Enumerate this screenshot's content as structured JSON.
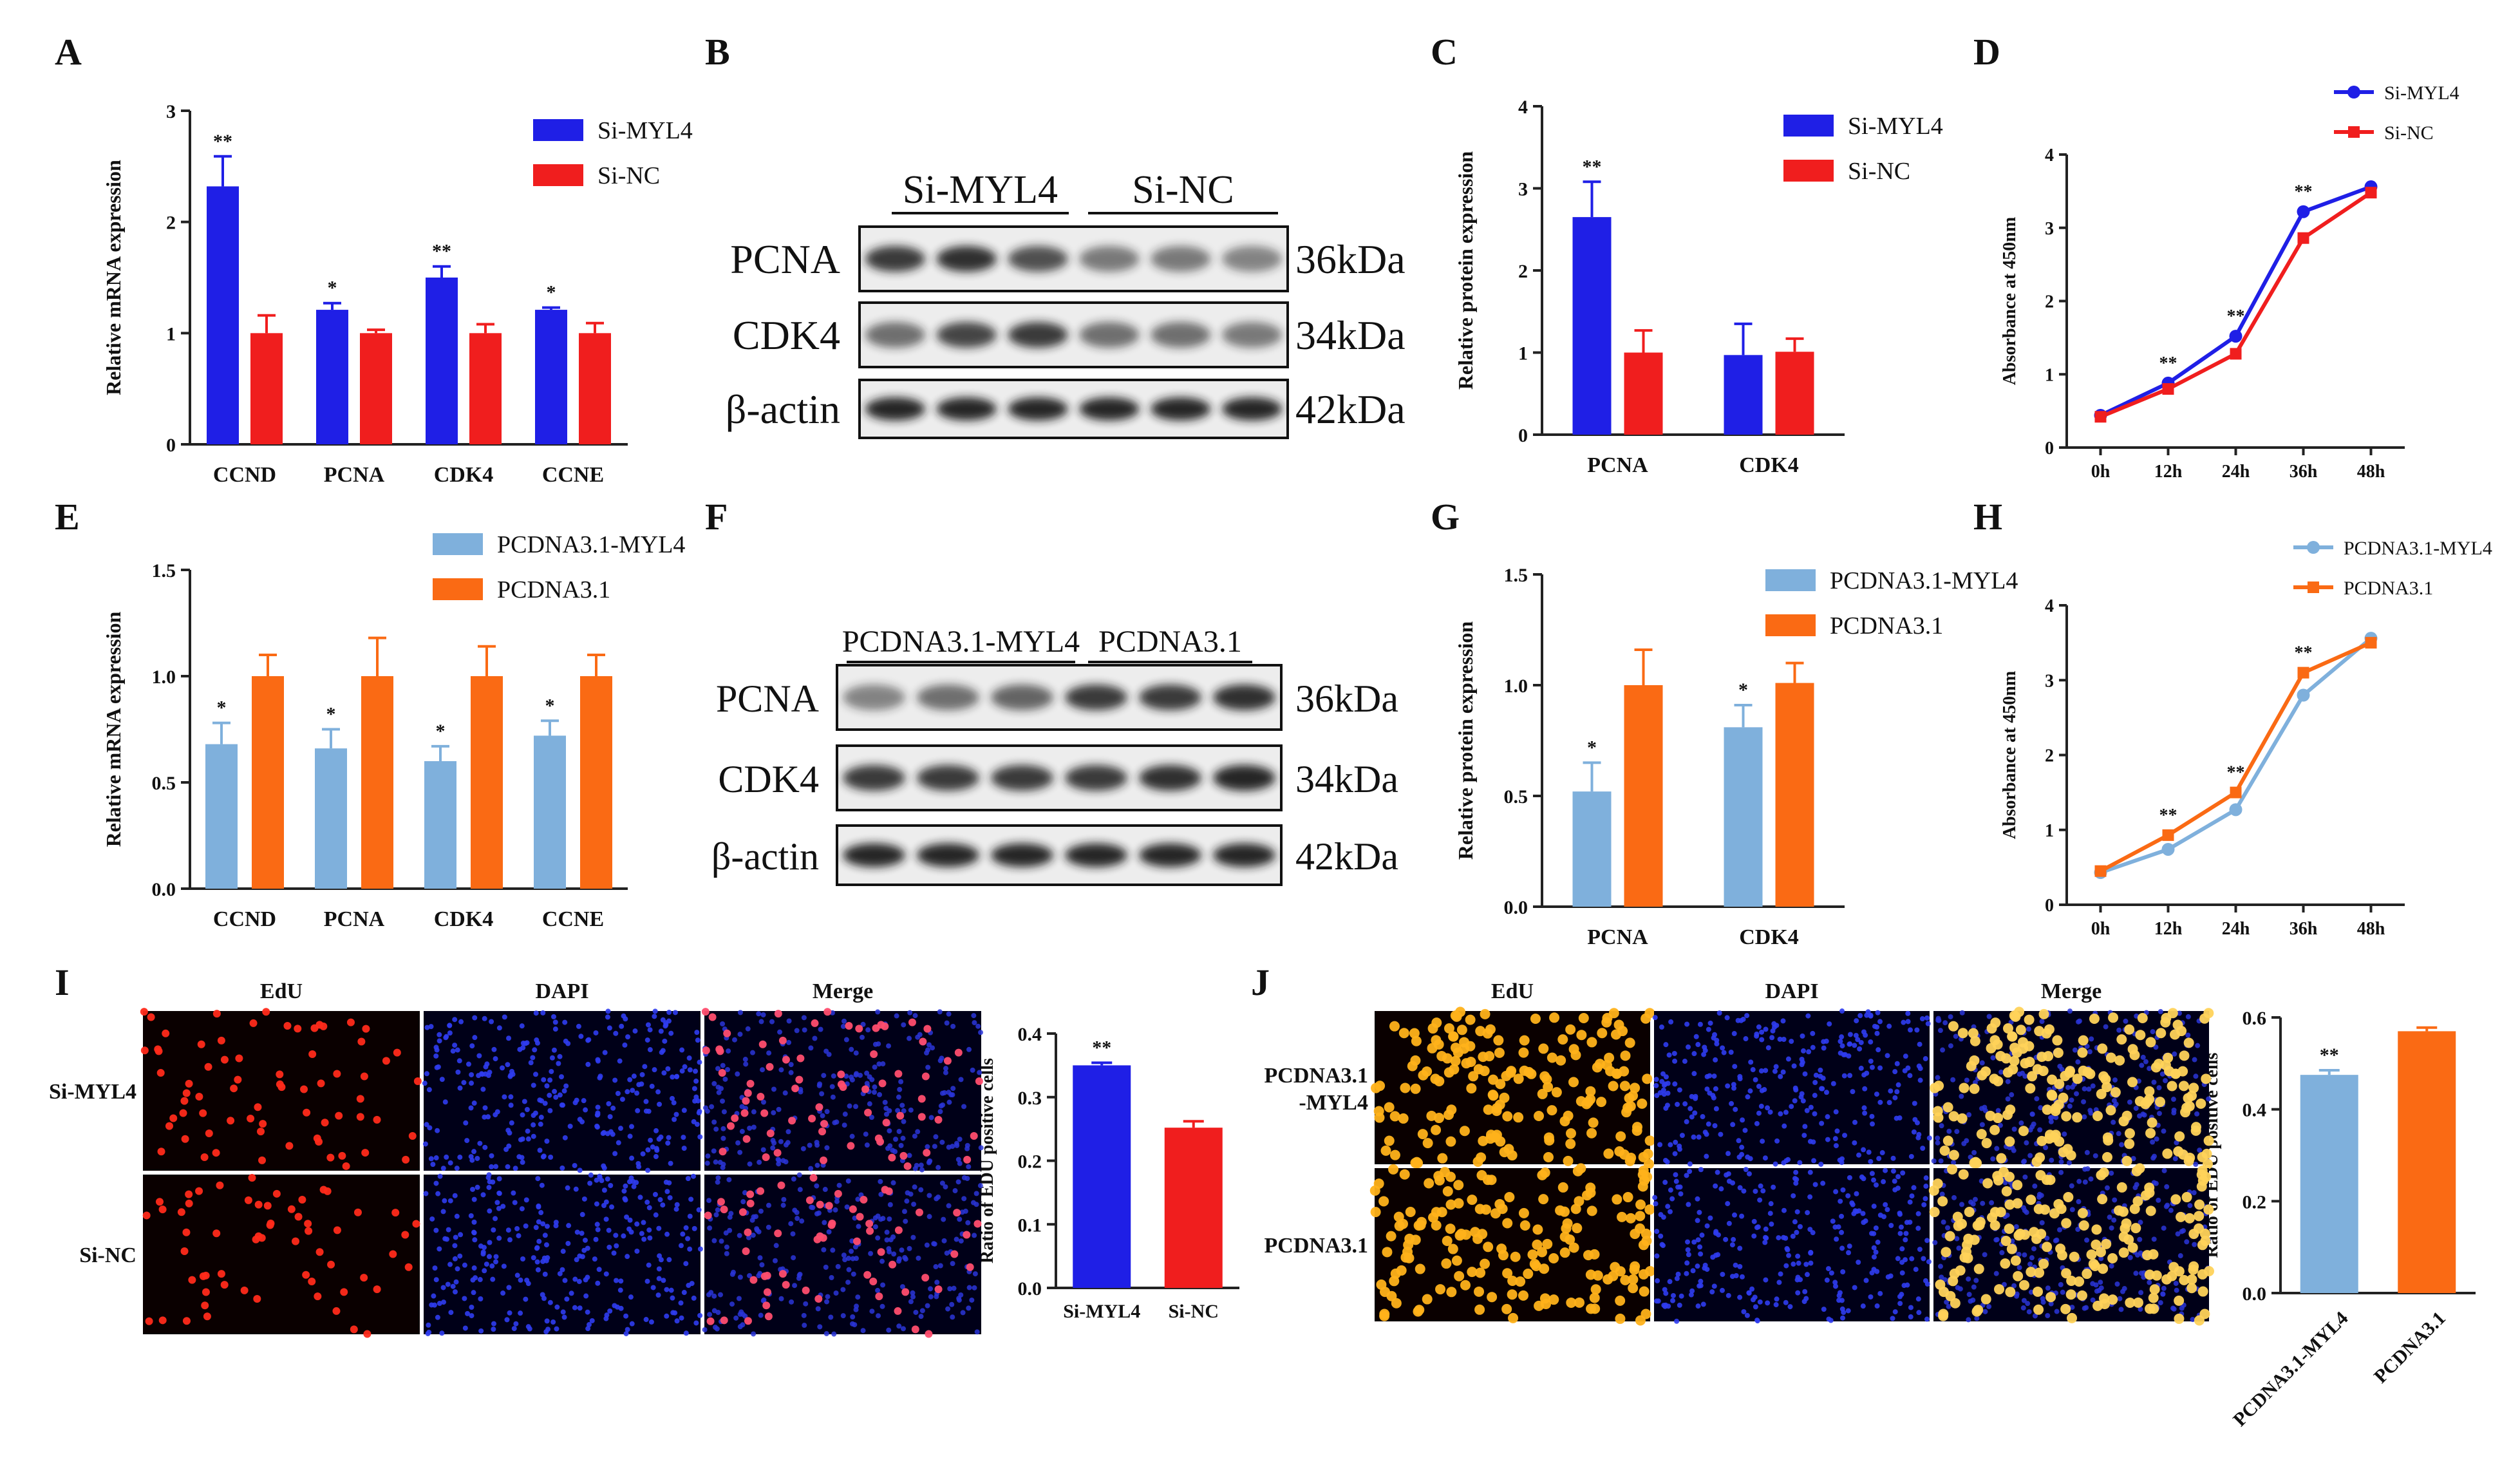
{
  "colors": {
    "blue": "#1f1fe6",
    "red": "#f01e1e",
    "lightblue": "#7fb0dc",
    "orange": "#fa6a14"
  },
  "panels": [
    {
      "id": "A",
      "letter": "A",
      "type": "bar",
      "ylabel": "Relative mRNA expression",
      "ylim": [
        0,
        3
      ],
      "yticks": [
        "0",
        "1",
        "2",
        "3"
      ],
      "categories": [
        "CCND",
        "PCNA",
        "CDK4",
        "CCNE"
      ],
      "series": [
        {
          "name": "Si-MYL4",
          "color": "blue",
          "values": [
            2.32,
            1.21,
            1.5,
            1.21
          ],
          "errors": [
            0.27,
            0.06,
            0.1,
            0.02
          ],
          "sig": [
            "**",
            "*",
            "**",
            "*"
          ]
        },
        {
          "name": "Si-NC",
          "color": "red",
          "values": [
            1.0,
            1.0,
            1.0,
            1.0
          ],
          "errors": [
            0.16,
            0.03,
            0.08,
            0.09
          ],
          "sig": [
            "",
            "",
            "",
            ""
          ]
        }
      ]
    },
    {
      "id": "C",
      "letter": "C",
      "type": "bar",
      "ylabel": "Relative  protein expression",
      "ylim": [
        0,
        4
      ],
      "yticks": [
        "0",
        "1",
        "2",
        "3",
        "4"
      ],
      "categories": [
        "PCNA",
        "CDK4"
      ],
      "series": [
        {
          "name": "Si-MYL4",
          "color": "blue",
          "values": [
            2.65,
            0.97
          ],
          "errors": [
            0.43,
            0.38
          ],
          "sig": [
            "**",
            ""
          ]
        },
        {
          "name": "Si-NC",
          "color": "red",
          "values": [
            1.0,
            1.01
          ],
          "errors": [
            0.27,
            0.16
          ],
          "sig": [
            "",
            ""
          ]
        }
      ]
    },
    {
      "id": "E",
      "letter": "E",
      "type": "bar",
      "ylabel": "Relative mRNA expression",
      "ylim": [
        0,
        1.5
      ],
      "yticks": [
        "0.0",
        "0.5",
        "1.0",
        "1.5"
      ],
      "categories": [
        "CCND",
        "PCNA",
        "CDK4",
        "CCNE"
      ],
      "series": [
        {
          "name": "PCDNA3.1-MYL4",
          "color": "lightblue",
          "values": [
            0.68,
            0.66,
            0.6,
            0.72
          ],
          "errors": [
            0.1,
            0.09,
            0.07,
            0.07
          ],
          "sig": [
            "*",
            "*",
            "*",
            "*"
          ]
        },
        {
          "name": "PCDNA3.1",
          "color": "orange",
          "values": [
            1.0,
            1.0,
            1.0,
            1.0
          ],
          "errors": [
            0.1,
            0.18,
            0.14,
            0.1
          ],
          "sig": [
            "",
            "",
            "",
            ""
          ]
        }
      ]
    },
    {
      "id": "G",
      "letter": "G",
      "type": "bar",
      "ylabel": "Relative  protein expression",
      "ylim": [
        0,
        1.5
      ],
      "yticks": [
        "0.0",
        "0.5",
        "1.0",
        "1.5"
      ],
      "categories": [
        "PCNA",
        "CDK4"
      ],
      "series": [
        {
          "name": "PCDNA3.1-MYL4",
          "color": "lightblue",
          "values": [
            0.52,
            0.81
          ],
          "errors": [
            0.13,
            0.1
          ],
          "sig": [
            "*",
            "*"
          ]
        },
        {
          "name": "PCDNA3.1",
          "color": "orange",
          "values": [
            1.0,
            1.01
          ],
          "errors": [
            0.16,
            0.09
          ],
          "sig": [
            "",
            ""
          ]
        }
      ]
    },
    {
      "id": "D",
      "letter": "D",
      "type": "line",
      "ylabel": "Absorbance at 450nm",
      "ylim": [
        0,
        4
      ],
      "yticks": [
        "0",
        "1",
        "2",
        "3",
        "4"
      ],
      "categories": [
        "0h",
        "12h",
        "24h",
        "36h",
        "48h"
      ],
      "sig": [
        "",
        "**",
        "**",
        "**",
        ""
      ],
      "series": [
        {
          "name": "Si-MYL4",
          "color": "blue",
          "marker": "circle",
          "values": [
            0.44,
            0.88,
            1.52,
            3.22,
            3.56
          ]
        },
        {
          "name": "Si-NC",
          "color": "red",
          "marker": "square",
          "values": [
            0.42,
            0.8,
            1.28,
            2.86,
            3.48
          ]
        }
      ]
    },
    {
      "id": "H",
      "letter": "H",
      "type": "line",
      "ylabel": "Absorbance at 450nm",
      "ylim": [
        0,
        4
      ],
      "yticks": [
        "0",
        "1",
        "2",
        "3",
        "4"
      ],
      "categories": [
        "0h",
        "12h",
        "24h",
        "36h",
        "48h"
      ],
      "sig": [
        "",
        "**",
        "**",
        "**",
        ""
      ],
      "series": [
        {
          "name": "PCDNA3.1-MYL4",
          "color": "lightblue",
          "marker": "circle",
          "values": [
            0.43,
            0.74,
            1.27,
            2.8,
            3.56
          ]
        },
        {
          "name": "PCDNA3.1",
          "color": "orange",
          "marker": "square",
          "values": [
            0.45,
            0.93,
            1.5,
            3.1,
            3.5
          ]
        }
      ]
    },
    {
      "id": "I",
      "letter": "",
      "type": "bar",
      "ylabel": "Ratio of EDU positive cells",
      "ylim": [
        0,
        0.4
      ],
      "yticks": [
        "0.0",
        "0.1",
        "0.2",
        "0.3",
        "0.4"
      ],
      "categories": [
        "Si-MYL4",
        "Si-NC"
      ],
      "series": [
        {
          "name": "ratio",
          "colors": [
            "blue",
            "red"
          ],
          "values": [
            0.35,
            0.252
          ],
          "errors": [
            0.004,
            0.01
          ],
          "sig": [
            "**",
            ""
          ]
        }
      ]
    },
    {
      "id": "J",
      "letter": "",
      "type": "bar",
      "ylabel": "Ratio of EDU positive cells",
      "ylim": [
        0,
        0.6
      ],
      "yticks": [
        "0.0",
        "0.2",
        "0.4",
        "0.6"
      ],
      "categories": [
        "PCDNA3.1-MYL4",
        "PCDNA3.1"
      ],
      "series": [
        {
          "name": "ratio",
          "colors": [
            "lightblue",
            "orange"
          ],
          "values": [
            0.475,
            0.57
          ],
          "errors": [
            0.01,
            0.008
          ],
          "sig": [
            "**",
            ""
          ]
        }
      ]
    }
  ],
  "chart_data": [
    {
      "panel": "A",
      "type": "bar",
      "ylabel": "Relative mRNA expression",
      "ylim": [
        0,
        3
      ],
      "categories": [
        "CCND",
        "PCNA",
        "CDK4",
        "CCNE"
      ],
      "series": [
        {
          "name": "Si-MYL4",
          "values": [
            2.32,
            1.21,
            1.5,
            1.21
          ]
        },
        {
          "name": "Si-NC",
          "values": [
            1.0,
            1.0,
            1.0,
            1.0
          ]
        }
      ]
    },
    {
      "panel": "C",
      "type": "bar",
      "ylabel": "Relative  protein expression",
      "ylim": [
        0,
        4
      ],
      "categories": [
        "PCNA",
        "CDK4"
      ],
      "series": [
        {
          "name": "Si-MYL4",
          "values": [
            2.65,
            0.97
          ]
        },
        {
          "name": "Si-NC",
          "values": [
            1.0,
            1.01
          ]
        }
      ]
    },
    {
      "panel": "D",
      "type": "line",
      "ylabel": "Absorbance at 450nm",
      "ylim": [
        0,
        4
      ],
      "x": [
        "0h",
        "12h",
        "24h",
        "36h",
        "48h"
      ],
      "series": [
        {
          "name": "Si-MYL4",
          "values": [
            0.44,
            0.88,
            1.52,
            3.22,
            3.56
          ]
        },
        {
          "name": "Si-NC",
          "values": [
            0.42,
            0.8,
            1.28,
            2.86,
            3.48
          ]
        }
      ]
    },
    {
      "panel": "E",
      "type": "bar",
      "ylabel": "Relative mRNA expression",
      "ylim": [
        0,
        1.5
      ],
      "categories": [
        "CCND",
        "PCNA",
        "CDK4",
        "CCNE"
      ],
      "series": [
        {
          "name": "PCDNA3.1-MYL4",
          "values": [
            0.68,
            0.66,
            0.6,
            0.72
          ]
        },
        {
          "name": "PCDNA3.1",
          "values": [
            1.0,
            1.0,
            1.0,
            1.0
          ]
        }
      ]
    },
    {
      "panel": "G",
      "type": "bar",
      "ylabel": "Relative  protein expression",
      "ylim": [
        0,
        1.5
      ],
      "categories": [
        "PCNA",
        "CDK4"
      ],
      "series": [
        {
          "name": "PCDNA3.1-MYL4",
          "values": [
            0.52,
            0.81
          ]
        },
        {
          "name": "PCDNA3.1",
          "values": [
            1.0,
            1.01
          ]
        }
      ]
    },
    {
      "panel": "H",
      "type": "line",
      "ylabel": "Absorbance at 450nm",
      "ylim": [
        0,
        4
      ],
      "x": [
        "0h",
        "12h",
        "24h",
        "36h",
        "48h"
      ],
      "series": [
        {
          "name": "PCDNA3.1-MYL4",
          "values": [
            0.43,
            0.74,
            1.27,
            2.8,
            3.56
          ]
        },
        {
          "name": "PCDNA3.1",
          "values": [
            0.45,
            0.93,
            1.5,
            3.1,
            3.5
          ]
        }
      ]
    },
    {
      "panel": "I",
      "type": "bar",
      "ylabel": "Ratio of EDU positive cells",
      "ylim": [
        0,
        0.4
      ],
      "categories": [
        "Si-MYL4",
        "Si-NC"
      ],
      "values": [
        0.35,
        0.252
      ]
    },
    {
      "panel": "J",
      "type": "bar",
      "ylabel": "Ratio of EDU positive cells",
      "ylim": [
        0,
        0.6
      ],
      "categories": [
        "PCDNA3.1-MYL4",
        "PCDNA3.1"
      ],
      "values": [
        0.475,
        0.57
      ]
    }
  ],
  "blots": [
    {
      "id": "B",
      "letter": "B",
      "groups": [
        "Si-MYL4",
        "Si-NC"
      ],
      "rows": [
        "PCNA",
        "CDK4",
        "β-actin"
      ],
      "sizes": [
        "36kDa",
        "34kDa",
        "42kDa"
      ]
    },
    {
      "id": "F",
      "letter": "F",
      "groups": [
        "PCDNA3.1-MYL4",
        "PCDNA3.1"
      ],
      "rows": [
        "PCNA",
        "CDK4",
        "β-actin"
      ],
      "sizes": [
        "36kDa",
        "34kDa",
        "42kDa"
      ]
    }
  ],
  "micro": [
    {
      "id": "I",
      "letter": "I",
      "columns": [
        "EdU",
        "DAPI",
        "Merge"
      ],
      "rows": [
        "Si-MYL4",
        "Si-NC"
      ]
    },
    {
      "id": "J",
      "letter": "J",
      "columns": [
        "EdU",
        "DAPI",
        "Merge"
      ],
      "rows": [
        "PCDNA3.1\n-MYL4",
        "PCDNA3.1"
      ]
    }
  ]
}
